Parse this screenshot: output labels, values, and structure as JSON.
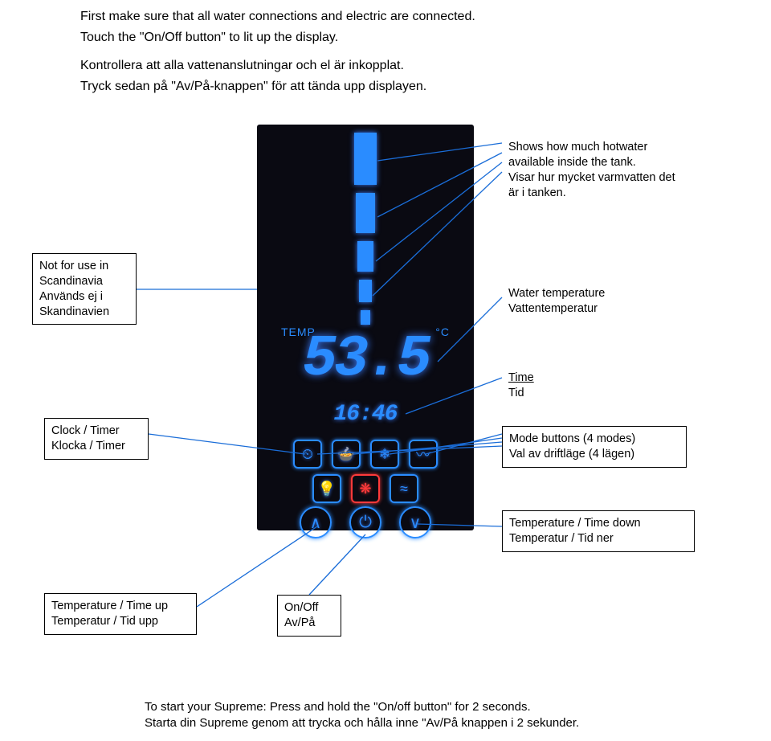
{
  "intro": {
    "en1": "First make sure that all water connections and electric are connected.",
    "en2": "Touch the \"On/Off button\" to lit up the display.",
    "sv1": "Kontrollera att alla vattenanslutningar och el är inkopplat.",
    "sv2": "Tryck sedan på \"Av/På-knappen\" för att tända upp displayen."
  },
  "panel": {
    "background_color": "#0a0a12",
    "accent_color": "#2a8cff",
    "warning_color": "#ff3a3a",
    "temp_label_left": "TEMP",
    "temp_label_right": "°C",
    "temp_value": "53.5",
    "time_value": "16:46",
    "tank_segments": [
      {
        "w": 28,
        "h": 65
      },
      {
        "w": 24,
        "h": 50
      },
      {
        "w": 20,
        "h": 38
      },
      {
        "w": 16,
        "h": 28
      },
      {
        "w": 12,
        "h": 18
      }
    ],
    "mode_icons": [
      "⏲",
      "🍲",
      "❄",
      "〰"
    ],
    "lower_mode_icons": [
      "💡",
      "❋",
      "≈"
    ],
    "lower_mode_accent": [
      false,
      true,
      false
    ],
    "ctrl_icons": {
      "up": "∧",
      "power": "⏻",
      "down": "∨"
    }
  },
  "labels": {
    "hotwater": {
      "en": "Shows how much hotwater available inside the tank.",
      "sv": "Visar hur mycket varmvatten det är i tanken."
    },
    "scandinavia": {
      "en": "Not for use in Scandinavia",
      "sv": "Används ej i Skandinavien"
    },
    "watertemp": {
      "en": "Water temperature",
      "sv": "Vattentemperatur"
    },
    "time": {
      "en": "Time",
      "sv": "Tid"
    },
    "clocktimer": {
      "en": "Clock / Timer",
      "sv": "Klocka / Timer"
    },
    "modebuttons": {
      "en": "Mode buttons (4 modes)",
      "sv": "Val av driftläge (4 lägen)"
    },
    "tempdown": {
      "en": "Temperature / Time down",
      "sv": "Temperatur / Tid ner"
    },
    "tempup": {
      "en": "Temperature / Time up",
      "sv": "Temperatur / Tid upp"
    },
    "onoff": {
      "en": "On/Off",
      "sv": "Av/På"
    }
  },
  "footer": {
    "en": "To start your Supreme: Press and hold the \"On/off button\" for 2 seconds.",
    "sv": "Starta din Supreme genom att trycka och hålla inne \"Av/På knappen i 2 sekunder."
  },
  "style": {
    "connector_color": "#1a6dd8",
    "label_border_color": "#000000",
    "label_fontsize": 14.5,
    "intro_fontsize": 16,
    "footer_fontsize": 15
  }
}
